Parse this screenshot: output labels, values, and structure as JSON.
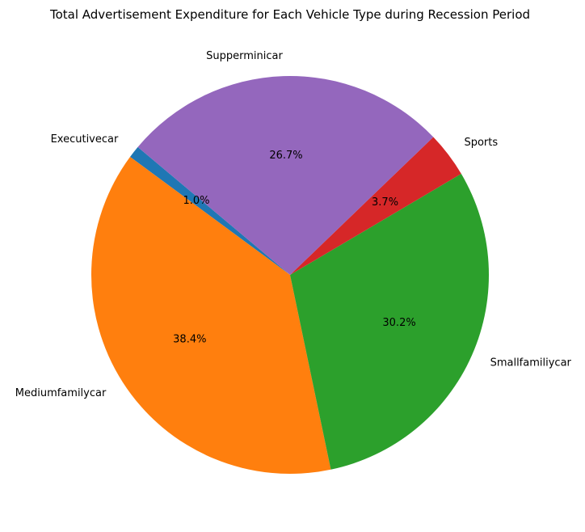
{
  "chart_data": {
    "type": "pie",
    "title": "Total Advertisement Expenditure for Each Vehicle Type during Recession Period",
    "categories": [
      "Executivecar",
      "Mediumfamilycar",
      "Smallfamiliycar",
      "Sports",
      "Supperminicar"
    ],
    "values": [
      1.0,
      38.4,
      30.2,
      3.7,
      26.7
    ],
    "percent_labels": [
      "1.0%",
      "38.4%",
      "30.2%",
      "3.7%",
      "26.7%"
    ],
    "colors": [
      "#1f77b4",
      "#ff7f0e",
      "#2ca02c",
      "#d62728",
      "#9467bd"
    ],
    "start_angle_deg": 140,
    "direction": "counterclockwise",
    "legend": "none"
  }
}
